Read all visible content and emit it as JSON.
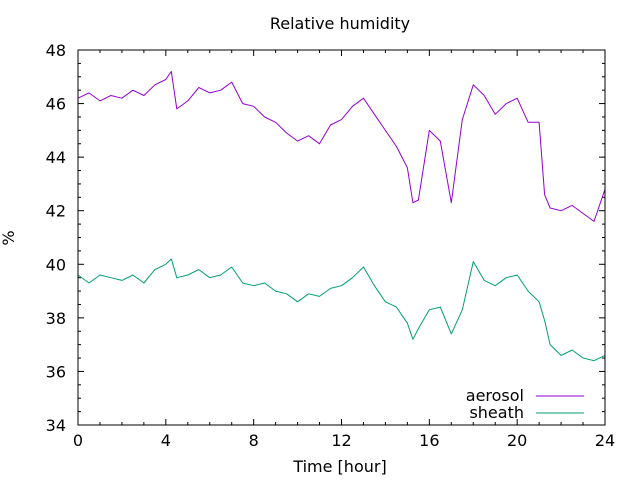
{
  "chart_data": {
    "type": "line",
    "title": "Relative humidity",
    "xlabel": "Time [hour]",
    "ylabel": "%",
    "xlim": [
      0,
      24
    ],
    "ylim": [
      34,
      48
    ],
    "xticks": [
      0,
      4,
      8,
      12,
      16,
      20,
      24
    ],
    "yticks": [
      34,
      36,
      38,
      40,
      42,
      44,
      46,
      48
    ],
    "grid": false,
    "legend_position": "bottom-right",
    "series": [
      {
        "name": "aerosol",
        "color": "#9400d3",
        "x": [
          0,
          0.5,
          1,
          1.5,
          2,
          2.5,
          3,
          3.5,
          4,
          4.25,
          4.5,
          5,
          5.5,
          6,
          6.5,
          7,
          7.5,
          8,
          8.5,
          9,
          9.5,
          10,
          10.5,
          11,
          11.5,
          12,
          12.5,
          13,
          13.5,
          14,
          14.5,
          15,
          15.25,
          15.5,
          16,
          16.5,
          17,
          17.5,
          18,
          18.5,
          19,
          19.5,
          20,
          20.5,
          21,
          21.25,
          21.5,
          22,
          22.5,
          23,
          23.5,
          24
        ],
        "y": [
          46.2,
          46.4,
          46.1,
          46.3,
          46.2,
          46.5,
          46.3,
          46.7,
          46.9,
          47.2,
          45.8,
          46.1,
          46.6,
          46.4,
          46.5,
          46.8,
          46.0,
          45.9,
          45.5,
          45.3,
          44.9,
          44.6,
          44.8,
          44.5,
          45.2,
          45.4,
          45.9,
          46.2,
          45.6,
          45.0,
          44.4,
          43.6,
          42.3,
          42.4,
          45.0,
          44.6,
          42.3,
          45.4,
          46.7,
          46.3,
          45.6,
          46.0,
          46.2,
          45.3,
          45.3,
          42.6,
          42.1,
          42.0,
          42.2,
          41.9,
          41.6,
          42.8
        ]
      },
      {
        "name": "sheath",
        "color": "#009e73",
        "x": [
          0,
          0.5,
          1,
          1.5,
          2,
          2.5,
          3,
          3.5,
          4,
          4.25,
          4.5,
          5,
          5.5,
          6,
          6.5,
          7,
          7.5,
          8,
          8.5,
          9,
          9.5,
          10,
          10.5,
          11,
          11.5,
          12,
          12.5,
          13,
          13.5,
          14,
          14.5,
          15,
          15.25,
          15.5,
          16,
          16.5,
          17,
          17.5,
          18,
          18.5,
          19,
          19.5,
          20,
          20.5,
          21,
          21.25,
          21.5,
          22,
          22.5,
          23,
          23.5,
          24
        ],
        "y": [
          39.6,
          39.3,
          39.6,
          39.5,
          39.4,
          39.6,
          39.3,
          39.8,
          40.0,
          40.2,
          39.5,
          39.6,
          39.8,
          39.5,
          39.6,
          39.9,
          39.3,
          39.2,
          39.3,
          39.0,
          38.9,
          38.6,
          38.9,
          38.8,
          39.1,
          39.2,
          39.5,
          39.9,
          39.2,
          38.6,
          38.4,
          37.8,
          37.2,
          37.6,
          38.3,
          38.4,
          37.4,
          38.3,
          40.1,
          39.4,
          39.2,
          39.5,
          39.6,
          39.0,
          38.6,
          37.9,
          37.0,
          36.6,
          36.8,
          36.5,
          36.4,
          36.6
        ]
      }
    ]
  }
}
